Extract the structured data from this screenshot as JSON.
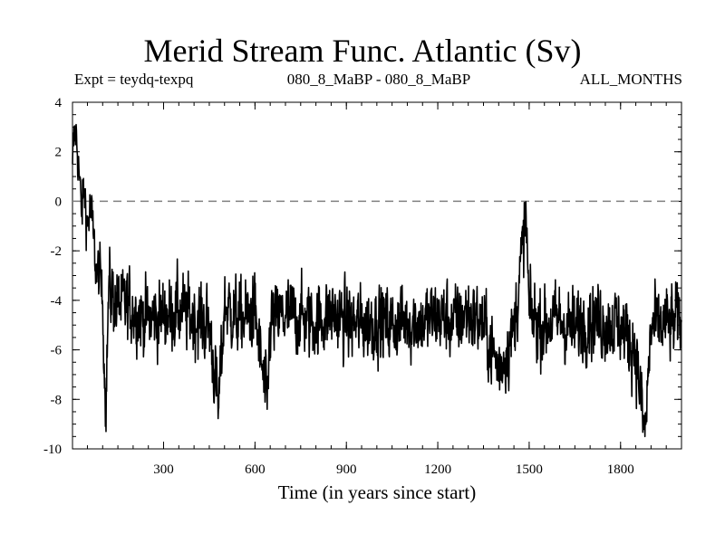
{
  "chart_data": {
    "type": "line",
    "title": "Merid Stream Func. Atlantic (Sv)",
    "subtitle_left": "Expt = teydq-texpq",
    "subtitle_center": "080_8_MaBP - 080_8_MaBP",
    "subtitle_right": "ALL_MONTHS",
    "xlabel": "Time (in years since start)",
    "ylabel": "",
    "xlim": [
      1,
      2000
    ],
    "ylim": [
      -10,
      4
    ],
    "xticks": [
      300,
      600,
      900,
      1200,
      1500,
      1800
    ],
    "yticks": [
      4,
      2,
      0,
      -2,
      -4,
      -6,
      -8,
      -10
    ],
    "reference_line": {
      "y": 0,
      "style": "dashed",
      "color": "#808080"
    },
    "series": [
      {
        "name": "Merid Stream Func. Atlantic",
        "color": "#000000",
        "description": "Annual values; starts near +2 Sv, drops to about -4 Sv within the first ~100 years, then fluctuates between about -8 and -1 Sv around a mean of about -4.8 Sv",
        "x": [
          1,
          10,
          20,
          30,
          40,
          50,
          60,
          70,
          80,
          90,
          100,
          110,
          120,
          150,
          200,
          250,
          300,
          350,
          400,
          450,
          480,
          500,
          550,
          600,
          640,
          650,
          700,
          750,
          800,
          850,
          900,
          950,
          1000,
          1050,
          1100,
          1150,
          1200,
          1250,
          1300,
          1350,
          1400,
          1450,
          1490,
          1500,
          1550,
          1600,
          1650,
          1700,
          1750,
          1800,
          1850,
          1880,
          1900,
          1950,
          2000
        ],
        "values": [
          1.5,
          3.0,
          1.8,
          -0.5,
          0.5,
          -1.0,
          -0.2,
          -1.5,
          -3.0,
          -2.8,
          -4.2,
          -8.5,
          -3.5,
          -4.2,
          -4.3,
          -4.8,
          -4.6,
          -4.4,
          -4.7,
          -5.0,
          -8.4,
          -4.2,
          -4.8,
          -4.5,
          -8.4,
          -4.9,
          -4.6,
          -4.7,
          -4.9,
          -4.5,
          -4.9,
          -5.0,
          -4.8,
          -5.0,
          -4.8,
          -4.9,
          -4.6,
          -4.9,
          -4.5,
          -5.0,
          -6.8,
          -5.2,
          -0.6,
          -4.6,
          -5.0,
          -4.8,
          -5.2,
          -4.7,
          -4.9,
          -5.0,
          -6.0,
          -9.5,
          -5.1,
          -5.0,
          -4.8
        ]
      }
    ]
  }
}
